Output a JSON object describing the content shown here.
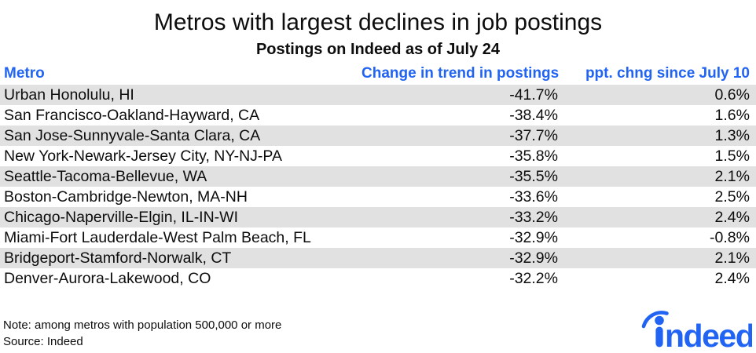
{
  "title": "Metros with largest declines in job postings",
  "subtitle": "Postings on Indeed as of July 24",
  "colors": {
    "accent": "#2164f3",
    "stripe": "#e1e1e1",
    "text": "#0d0d0d"
  },
  "chart_data": {
    "type": "table",
    "title": "Metros with largest declines in job postings",
    "subtitle": "Postings on Indeed as of July 24",
    "columns": [
      "Metro",
      "Change in trend in postings",
      "ppt. chng since July 10"
    ],
    "rows": [
      {
        "metro": "Urban Honolulu, HI",
        "change": "-41.7%",
        "ppt": "0.6%"
      },
      {
        "metro": "San Francisco-Oakland-Hayward, CA",
        "change": "-38.4%",
        "ppt": "1.6%"
      },
      {
        "metro": "San Jose-Sunnyvale-Santa Clara, CA",
        "change": "-37.7%",
        "ppt": "1.3%"
      },
      {
        "metro": "New York-Newark-Jersey City, NY-NJ-PA",
        "change": "-35.8%",
        "ppt": "1.5%"
      },
      {
        "metro": "Seattle-Tacoma-Bellevue, WA",
        "change": "-35.5%",
        "ppt": "2.1%"
      },
      {
        "metro": "Boston-Cambridge-Newton, MA-NH",
        "change": "-33.6%",
        "ppt": "2.5%"
      },
      {
        "metro": "Chicago-Naperville-Elgin, IL-IN-WI",
        "change": "-33.2%",
        "ppt": "2.4%"
      },
      {
        "metro": "Miami-Fort Lauderdale-West Palm Beach, FL",
        "change": "-32.9%",
        "ppt": "-0.8%"
      },
      {
        "metro": "Bridgeport-Stamford-Norwalk, CT",
        "change": "-32.9%",
        "ppt": "2.1%"
      },
      {
        "metro": "Denver-Aurora-Lakewood, CO",
        "change": "-32.2%",
        "ppt": "2.4%"
      }
    ],
    "change_values_numeric_pct": [
      -41.7,
      -38.4,
      -37.7,
      -35.8,
      -35.5,
      -33.6,
      -33.2,
      -32.9,
      -32.9,
      -32.2
    ],
    "ppt_change_values_numeric": [
      0.6,
      1.6,
      1.3,
      1.5,
      2.1,
      2.5,
      2.4,
      -0.8,
      2.1,
      2.4
    ]
  },
  "footer": {
    "note": "Note: among metros with population 500,000 or more",
    "source": "Source: Indeed",
    "logo_text": "ndeed"
  }
}
